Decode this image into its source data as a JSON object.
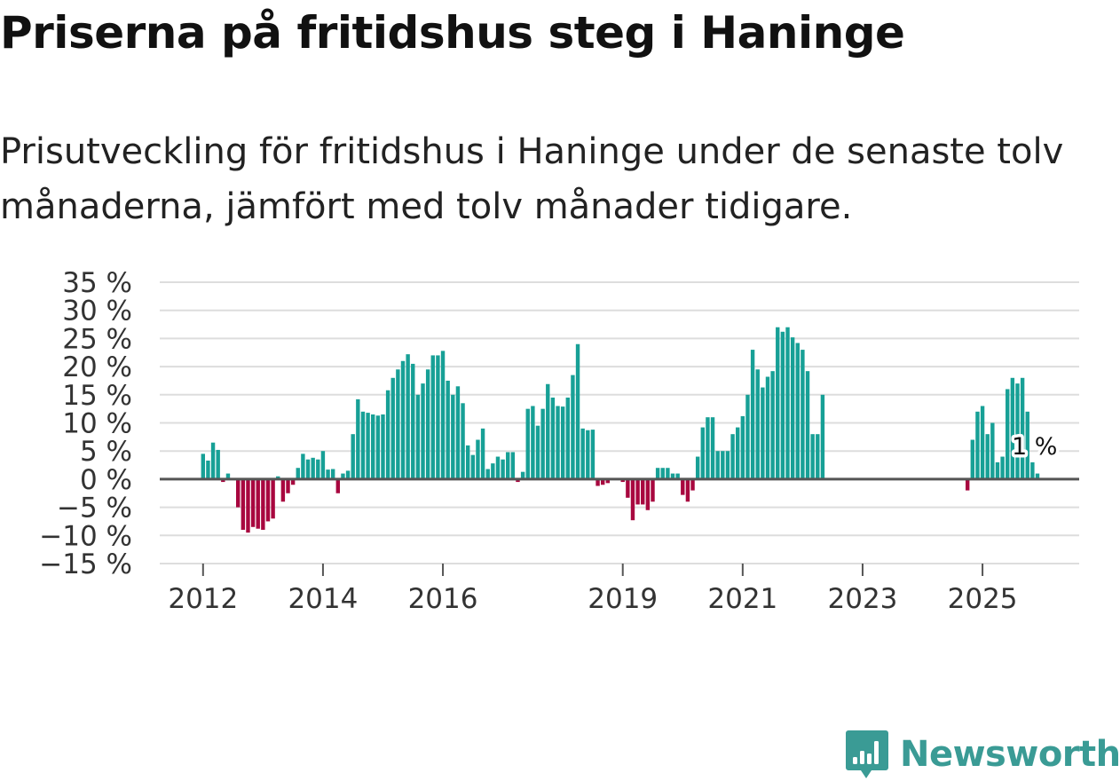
{
  "title": "Priserna på fritidshus steg i Haninge",
  "subtitle": "Prisutveckling för fritidshus i Haninge under de senaste tolv månaderna, jämfört med tolv månader tidigare.",
  "brand": {
    "name": "Newsworthy",
    "icon": "newsworthy-bar-chart-logo-icon"
  },
  "colors": {
    "positive": "#17a096",
    "negative": "#a8073f",
    "grid": "#dddddd",
    "zero_line": "#555555",
    "axis_text": "#333333",
    "brand": "#3a9b95"
  },
  "chart_data": {
    "type": "bar",
    "title": "Priserna på fritidshus steg i Haninge",
    "xlabel": "",
    "ylabel": "",
    "ylim": [
      -15,
      35
    ],
    "y_ticks": [
      35,
      30,
      25,
      20,
      15,
      10,
      5,
      0,
      -5,
      -10,
      -15
    ],
    "y_tick_labels": [
      "35 %",
      "30 %",
      "25 %",
      "20 %",
      "15 %",
      "10 %",
      "5 %",
      "0 %",
      "−5 %",
      "−10 %",
      "−15 %"
    ],
    "x_ticks": [
      {
        "label": "2012",
        "index": 0
      },
      {
        "label": "2014",
        "index": 24
      },
      {
        "label": "2016",
        "index": 48
      },
      {
        "label": "2019",
        "index": 84
      },
      {
        "label": "2021",
        "index": 108
      },
      {
        "label": "2023",
        "index": 132
      },
      {
        "label": "2025",
        "index": 156
      }
    ],
    "series": [
      {
        "name": "Prisutveckling",
        "start_period": "2012-01",
        "values": [
          4.5,
          3.3,
          6.5,
          5.2,
          -0.5,
          1.0,
          0,
          -5.0,
          -9.0,
          -9.5,
          -8.5,
          -8.8,
          -9.0,
          -7.5,
          -7.0,
          0.5,
          -4.0,
          -2.5,
          -1.0,
          2.0,
          4.5,
          3.5,
          3.8,
          3.5,
          5.0,
          1.7,
          1.8,
          -2.5,
          1.0,
          1.5,
          8.0,
          14.2,
          12.0,
          11.8,
          11.5,
          11.3,
          11.5,
          15.8,
          18.0,
          19.5,
          21.0,
          22.2,
          20.5,
          15.0,
          17.0,
          19.5,
          22.0,
          22.0,
          22.8,
          17.5,
          15.0,
          16.5,
          13.5,
          6.0,
          4.3,
          7.0,
          9.0,
          1.8,
          2.8,
          4.0,
          3.5,
          4.8,
          4.8,
          -0.5,
          1.3,
          12.5,
          13.0,
          9.5,
          12.5,
          16.9,
          14.5,
          13.0,
          12.9,
          14.5,
          18.5,
          24.0,
          9.0,
          8.7,
          8.8,
          -1.2,
          -1.0,
          -0.7,
          0,
          0,
          -0.5,
          -3.3,
          -7.3,
          -4.5,
          -4.5,
          -5.5,
          -4.0,
          2.0,
          2.0,
          2.0,
          1.0,
          1.0,
          -2.8,
          -4.0,
          -2.0,
          4.0,
          9.2,
          11.0,
          11.0,
          5.0,
          5.0,
          5.0,
          8.0,
          9.2,
          11.2,
          15.0,
          23.0,
          19.5,
          16.3,
          18.2,
          19.2,
          27.0,
          26.2,
          27.0,
          25.2,
          24.2,
          23.0,
          19.2,
          8.0,
          8.0,
          15.0,
          null,
          null,
          null,
          null,
          null,
          null,
          null,
          null,
          null,
          null,
          null,
          null,
          null,
          null,
          null,
          null,
          null,
          null,
          null,
          null,
          null,
          null,
          null,
          null,
          null,
          null,
          null,
          null,
          -2.0,
          7.0,
          12.0,
          13.0,
          8.0,
          10.0,
          3.0,
          4.0,
          16.0,
          18.0,
          17.0,
          18.0,
          12.0,
          3.0,
          1.0
        ]
      }
    ],
    "annotations": [
      {
        "label": "1 %",
        "index": 171,
        "value": 1.0
      }
    ]
  }
}
